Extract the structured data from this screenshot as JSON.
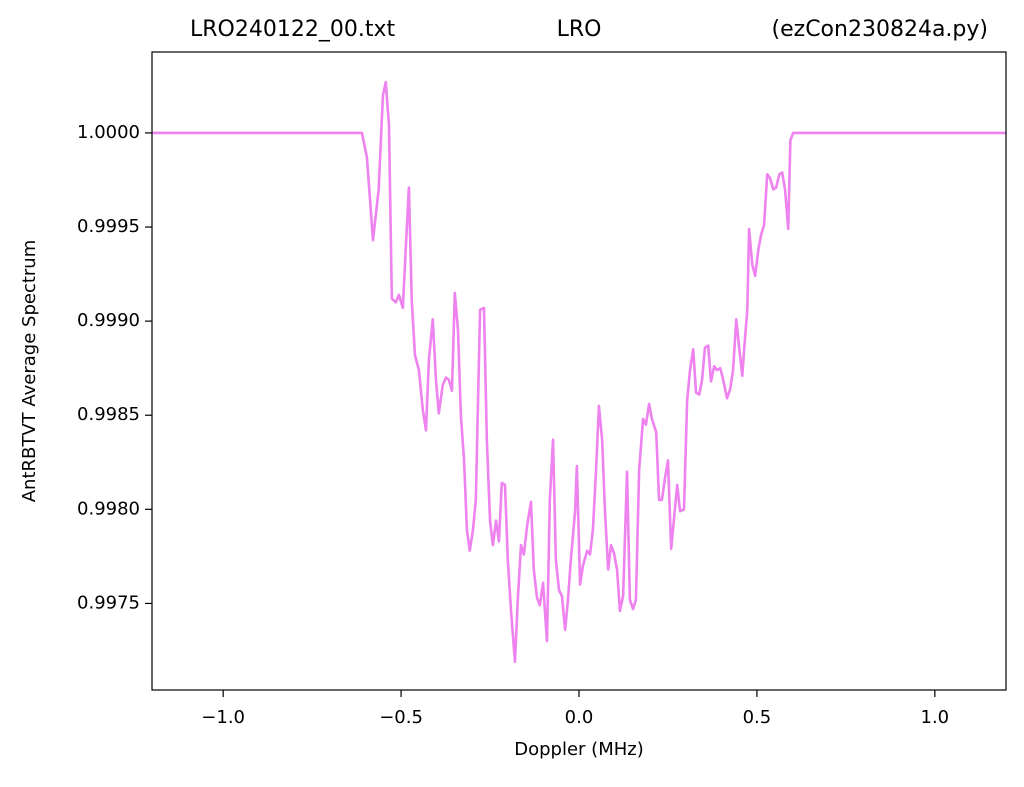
{
  "chart_data": {
    "type": "line",
    "title": [
      "LRO240122_00.txt",
      "LRO",
      "(ezCon230824a.py)"
    ],
    "xlabel": "Doppler (MHz)",
    "ylabel": "AntRBTVT Average Spectrum",
    "color": "#ee82ee",
    "xlim": [
      -1.2,
      1.2
    ],
    "ylim": [
      0.99704,
      1.00043
    ],
    "xticks": [
      {
        "value": -1.0,
        "label": "−1.0"
      },
      {
        "value": -0.5,
        "label": "−0.5"
      },
      {
        "value": 0,
        "label": "0.0"
      },
      0.5,
      {
        "value": 1.0,
        "label": "1.0"
      }
    ],
    "yticks": [
      0.9975,
      {
        "value": 0.998,
        "label": "0.9980"
      },
      0.9985,
      {
        "value": 0.999,
        "label": "0.9990"
      },
      0.9995,
      {
        "value": 1,
        "label": "1.0000"
      }
    ],
    "grid": false,
    "x": [
      -1.2,
      -0.61,
      -0.596,
      -0.579,
      -0.563,
      -0.551,
      -0.543,
      -0.534,
      -0.526,
      -0.515,
      -0.506,
      -0.495,
      -0.487,
      -0.478,
      -0.47,
      -0.461,
      -0.45,
      -0.439,
      -0.43,
      -0.422,
      -0.411,
      -0.402,
      -0.394,
      -0.383,
      -0.374,
      -0.366,
      -0.357,
      -0.349,
      -0.34,
      -0.332,
      -0.323,
      -0.315,
      -0.307,
      -0.298,
      -0.29,
      -0.278,
      -0.267,
      -0.259,
      -0.25,
      -0.242,
      -0.233,
      -0.225,
      -0.217,
      -0.208,
      -0.2,
      -0.191,
      -0.18,
      -0.172,
      -0.163,
      -0.155,
      -0.146,
      -0.135,
      -0.127,
      -0.118,
      -0.11,
      -0.101,
      -0.09,
      -0.082,
      -0.073,
      -0.065,
      -0.056,
      -0.048,
      -0.039,
      -0.031,
      -0.023,
      -0.011,
      -0.006,
      0.003,
      0.011,
      0.023,
      0.031,
      0.039,
      0.048,
      0.056,
      0.065,
      0.073,
      0.082,
      0.09,
      0.098,
      0.107,
      0.115,
      0.124,
      0.135,
      0.143,
      0.152,
      0.16,
      0.169,
      0.18,
      0.188,
      0.197,
      0.205,
      0.217,
      0.225,
      0.233,
      0.242,
      0.25,
      0.259,
      0.267,
      0.276,
      0.284,
      0.295,
      0.304,
      0.312,
      0.321,
      0.329,
      0.338,
      0.346,
      0.354,
      0.363,
      0.371,
      0.38,
      0.388,
      0.397,
      0.405,
      0.416,
      0.425,
      0.433,
      0.442,
      0.45,
      0.459,
      0.464,
      0.473,
      0.478,
      0.487,
      0.495,
      0.504,
      0.512,
      0.52,
      0.529,
      0.537,
      0.546,
      0.554,
      0.563,
      0.571,
      0.579,
      0.588,
      0.594,
      0.602,
      1.2
    ],
    "values": [
      1.0,
      1.0,
      0.99987,
      0.99943,
      0.9997,
      1.0002,
      1.00027,
      1.00004,
      0.99912,
      0.9991,
      0.99914,
      0.99907,
      0.99938,
      0.99971,
      0.99911,
      0.99882,
      0.99874,
      0.99853,
      0.99842,
      0.99879,
      0.99901,
      0.99869,
      0.99851,
      0.99866,
      0.9987,
      0.99869,
      0.99863,
      0.99915,
      0.99895,
      0.9985,
      0.99826,
      0.99789,
      0.99778,
      0.99789,
      0.99805,
      0.99906,
      0.99907,
      0.99837,
      0.99794,
      0.99781,
      0.99794,
      0.99783,
      0.99814,
      0.99813,
      0.99773,
      0.99746,
      0.99719,
      0.99752,
      0.99781,
      0.99776,
      0.99791,
      0.99804,
      0.99768,
      0.99753,
      0.99749,
      0.99761,
      0.9973,
      0.99805,
      0.99837,
      0.99773,
      0.99757,
      0.99754,
      0.99736,
      0.99752,
      0.99773,
      0.99799,
      0.99823,
      0.9976,
      0.9977,
      0.99778,
      0.99776,
      0.99789,
      0.99821,
      0.99855,
      0.99837,
      0.99799,
      0.99768,
      0.99781,
      0.99777,
      0.99768,
      0.99746,
      0.99754,
      0.9982,
      0.99752,
      0.99747,
      0.99752,
      0.99821,
      0.99848,
      0.99845,
      0.99856,
      0.99848,
      0.99841,
      0.99805,
      0.99805,
      0.99817,
      0.99826,
      0.99779,
      0.99795,
      0.99813,
      0.99799,
      0.998,
      0.99858,
      0.99874,
      0.99885,
      0.99862,
      0.99861,
      0.99869,
      0.99886,
      0.99887,
      0.99868,
      0.99876,
      0.99874,
      0.99875,
      0.99869,
      0.99859,
      0.99864,
      0.99874,
      0.99901,
      0.99886,
      0.99871,
      0.99885,
      0.99906,
      0.99949,
      0.9993,
      0.99924,
      0.99938,
      0.99946,
      0.99951,
      0.99978,
      0.99976,
      0.9997,
      0.99971,
      0.99978,
      0.99979,
      0.9997,
      0.99949,
      0.99996,
      1.0,
      1.0
    ]
  }
}
